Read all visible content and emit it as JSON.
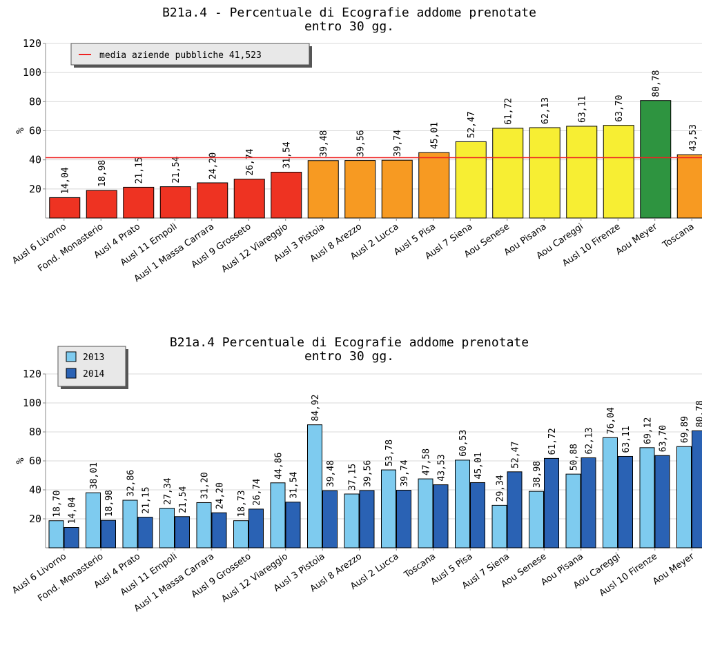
{
  "chart_data": [
    {
      "type": "bar",
      "title": [
        "B21a.4 - Percentuale di Ecografie addome prenotate",
        "entro 30 gg."
      ],
      "ylabel": "%",
      "xlabel": "",
      "ylim": [
        0,
        120
      ],
      "yticks": [
        20,
        40,
        60,
        80,
        100,
        120
      ],
      "grid": true,
      "categories": [
        "Ausl 6 Livorno",
        "Fond. Monasterio",
        "Ausl 4 Prato",
        "Ausl 11 Empoli",
        "Ausl 1 Massa Carrara",
        "Ausl 9 Grosseto",
        "Ausl 12 Viareggio",
        "Ausl 3 Pistoia",
        "Ausl 8 Arezzo",
        "Ausl 2 Lucca",
        "Ausl 5 Pisa",
        "Ausl 7 Siena",
        "Aou Senese",
        "Aou Pisana",
        "Aou Careggi",
        "Ausl 10 Firenze",
        "Aou Meyer",
        "Toscana"
      ],
      "values": [
        14.04,
        18.98,
        21.15,
        21.54,
        24.2,
        26.74,
        31.54,
        39.48,
        39.56,
        39.74,
        45.01,
        52.47,
        61.72,
        62.13,
        63.11,
        63.7,
        80.78,
        43.53
      ],
      "value_labels": [
        "14,04",
        "18,98",
        "21,15",
        "21,54",
        "24,20",
        "26,74",
        "31,54",
        "39,48",
        "39,56",
        "39,74",
        "45,01",
        "52,47",
        "61,72",
        "62,13",
        "63,11",
        "63,70",
        "80,78",
        "43,53"
      ],
      "bar_colors": [
        "#ee3322",
        "#ee3322",
        "#ee3322",
        "#ee3322",
        "#ee3322",
        "#ee3322",
        "#ee3322",
        "#f79a22",
        "#f79a22",
        "#f79a22",
        "#f79a22",
        "#f7ee33",
        "#f7ee33",
        "#f7ee33",
        "#f7ee33",
        "#f7ee33",
        "#2e9440",
        "#f79a22"
      ],
      "reference_line": {
        "value": 41.523,
        "label": "media aziende pubbliche 41,523",
        "color": "#ee2222"
      },
      "legend_position": "top-left"
    },
    {
      "type": "bar",
      "title": [
        "B21a.4 Percentuale di Ecografie addome prenotate",
        "entro 30 gg."
      ],
      "ylabel": "%",
      "xlabel": "",
      "ylim": [
        0,
        120
      ],
      "yticks": [
        20,
        40,
        60,
        80,
        100,
        120
      ],
      "grid": true,
      "categories": [
        "Ausl 6 Livorno",
        "Fond. Monasterio",
        "Ausl 4 Prato",
        "Ausl 11 Empoli",
        "Ausl 1 Massa Carrara",
        "Ausl 9 Grosseto",
        "Ausl 12 Viareggio",
        "Ausl 3 Pistoia",
        "Ausl 8 Arezzo",
        "Ausl 2 Lucca",
        "Toscana",
        "Ausl 5 Pisa",
        "Ausl 7 Siena",
        "Aou Senese",
        "Aou Pisana",
        "Aou Careggi",
        "Ausl 10 Firenze",
        "Aou Meyer"
      ],
      "series": [
        {
          "name": "2013",
          "color": "#7ecbef",
          "values": [
            18.7,
            38.01,
            32.86,
            27.34,
            31.2,
            18.73,
            44.86,
            84.92,
            37.15,
            53.78,
            47.58,
            60.53,
            29.34,
            38.98,
            50.88,
            76.04,
            69.12,
            69.89
          ],
          "value_labels": [
            "18,70",
            "38,01",
            "32,86",
            "27,34",
            "31,20",
            "18,73",
            "44,86",
            "84,92",
            "37,15",
            "53,78",
            "47,58",
            "60,53",
            "29,34",
            "38,98",
            "50,88",
            "76,04",
            "69,12",
            "69,89"
          ]
        },
        {
          "name": "2014",
          "color": "#2a62b4",
          "values": [
            14.04,
            18.98,
            21.15,
            21.54,
            24.2,
            26.74,
            31.54,
            39.48,
            39.56,
            39.74,
            43.53,
            45.01,
            52.47,
            61.72,
            62.13,
            63.11,
            63.7,
            80.78
          ],
          "value_labels": [
            "14,04",
            "18,98",
            "21,15",
            "21,54",
            "24,20",
            "26,74",
            "31,54",
            "39,48",
            "39,56",
            "39,74",
            "43,53",
            "45,01",
            "52,47",
            "61,72",
            "62,13",
            "63,11",
            "63,70",
            "80,78"
          ]
        }
      ],
      "legend_position": "top-left"
    }
  ]
}
